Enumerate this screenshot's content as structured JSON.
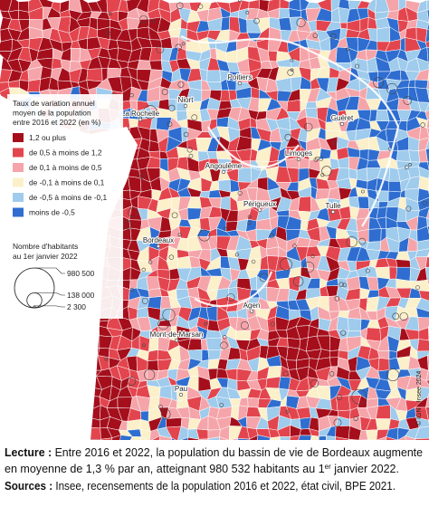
{
  "legend": {
    "title_lines": [
      "Taux de variation annuel",
      "moyen de la population",
      "entre 2016 et 2022 (en %)"
    ],
    "items": [
      {
        "label": "1,2 ou plus",
        "color": "#a50f1c"
      },
      {
        "label": "de 0,5 à moins de 1,2",
        "color": "#e3454e"
      },
      {
        "label": "de 0,1 à moins de 0,5",
        "color": "#f5a5aa"
      },
      {
        "label": "de -0,1 à moins de 0,1",
        "color": "#fbf0c9"
      },
      {
        "label": "de -0,5 à moins de -0,1",
        "color": "#9fcbec"
      },
      {
        "label": "moins de -0,5",
        "color": "#2f6ed0"
      }
    ]
  },
  "size_legend": {
    "title_lines": [
      "Nombre d'habitants",
      "au 1er janvier 2022"
    ],
    "values": [
      980500,
      138000,
      2300
    ],
    "value_labels": [
      "980 500",
      "138 000",
      "2 300"
    ]
  },
  "cities": [
    "Poitiers",
    "Niort",
    "La Rochelle",
    "Guéret",
    "Limoges",
    "Angoulême",
    "Tulle",
    "Périgueux",
    "Bordeaux",
    "Agen",
    "Mont-de-Marsan",
    "Pau"
  ],
  "copyright": "© IGN - Insee 2024",
  "caption": {
    "lecture_label": "Lecture :",
    "lecture_line1": " Entre 2016 et 2022, la population du bassin de vie de Bordeaux augmente",
    "lecture_line2": [
      "en moyenne de 1,3 % par an, atteignant 980 532 habitants au 1",
      "er",
      " janvier 2022."
    ],
    "sources_label": "Sources :",
    "sources_text": " Insee, recensements de la population 2016 et 2022, état civil, BPE 2021."
  }
}
